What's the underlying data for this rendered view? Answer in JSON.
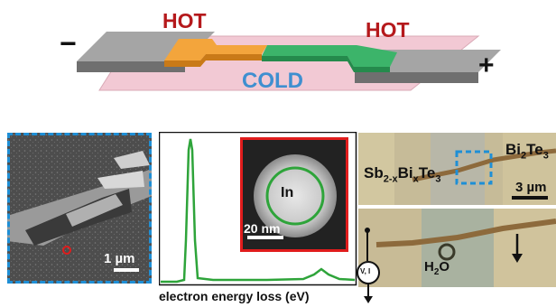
{
  "device": {
    "minus_sign": "−",
    "plus_sign": "+",
    "hot_left": "HOT",
    "hot_right": "HOT",
    "cold": "COLD"
  },
  "sem_panel": {
    "scale_text": "1 µm"
  },
  "eels_panel": {
    "xlabel": "electron energy loss (eV)",
    "inset_label": "In",
    "inset_scale_text": "20 nm"
  },
  "optical_top": {
    "left_label": {
      "base": "Sb",
      "sub1": "2-x",
      "mid": "Bi",
      "sub2": "x",
      "end": "Te",
      "sub3": "3"
    },
    "right_label": {
      "base": "Bi",
      "sub1": "2",
      "mid": "Te",
      "sub2": "3"
    },
    "scale_text": "3 µm"
  },
  "optical_bottom": {
    "water_label": {
      "base": "H",
      "sub": "2",
      "end": "O"
    },
    "meter_label": "V, I"
  },
  "colors": {
    "hot_text": "#b5191c",
    "cold_text": "#3f8fd0",
    "dashed_border": "#1e8fd6",
    "eels_line": "#2ea43a",
    "inset_border": "#e01c1c"
  }
}
